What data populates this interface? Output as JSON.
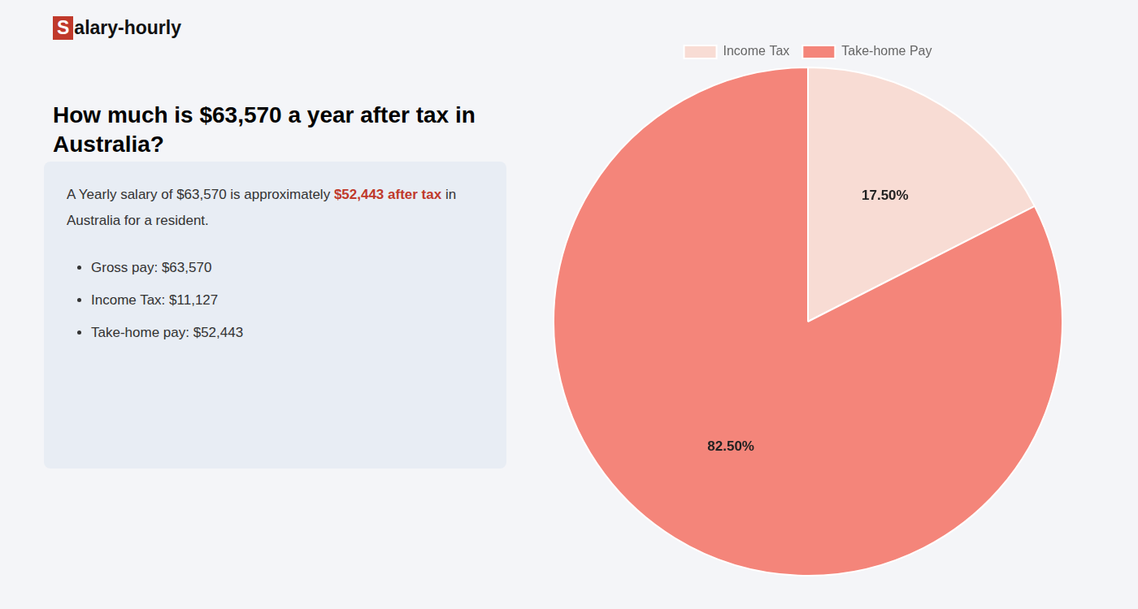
{
  "chart_data": {
    "type": "pie",
    "title": [
      "How much is $63,570 a year after tax in",
      "Australia?"
    ],
    "annotations": [
      [
        {
          "text": "S",
          "color": "#c0392b"
        },
        {
          "text": "alary-hourly"
        }
      ],
      [
        {
          "text": "A Yearly salary of $63,570 is approximately "
        },
        {
          "text": "$52,443 after tax",
          "color": "#c0392b"
        },
        {
          "text": " in"
        }
      ],
      [
        {
          "text": "Australia for a resident."
        }
      ],
      [
        {
          "text": "Gross pay: $63,570"
        }
      ],
      [
        {
          "text": "Income Tax: $11,127"
        }
      ],
      [
        {
          "text": "Take-home pay: $52,443"
        }
      ]
    ],
    "categories": [
      "Income Tax",
      "Take-home Pay"
    ],
    "values": [
      17.5,
      82.5
    ],
    "value_labels": [
      "17.50%",
      "82.50%"
    ],
    "colors": [
      "#f8dcd4",
      "#f4857a"
    ],
    "data_labels": true,
    "legend": "top"
  }
}
